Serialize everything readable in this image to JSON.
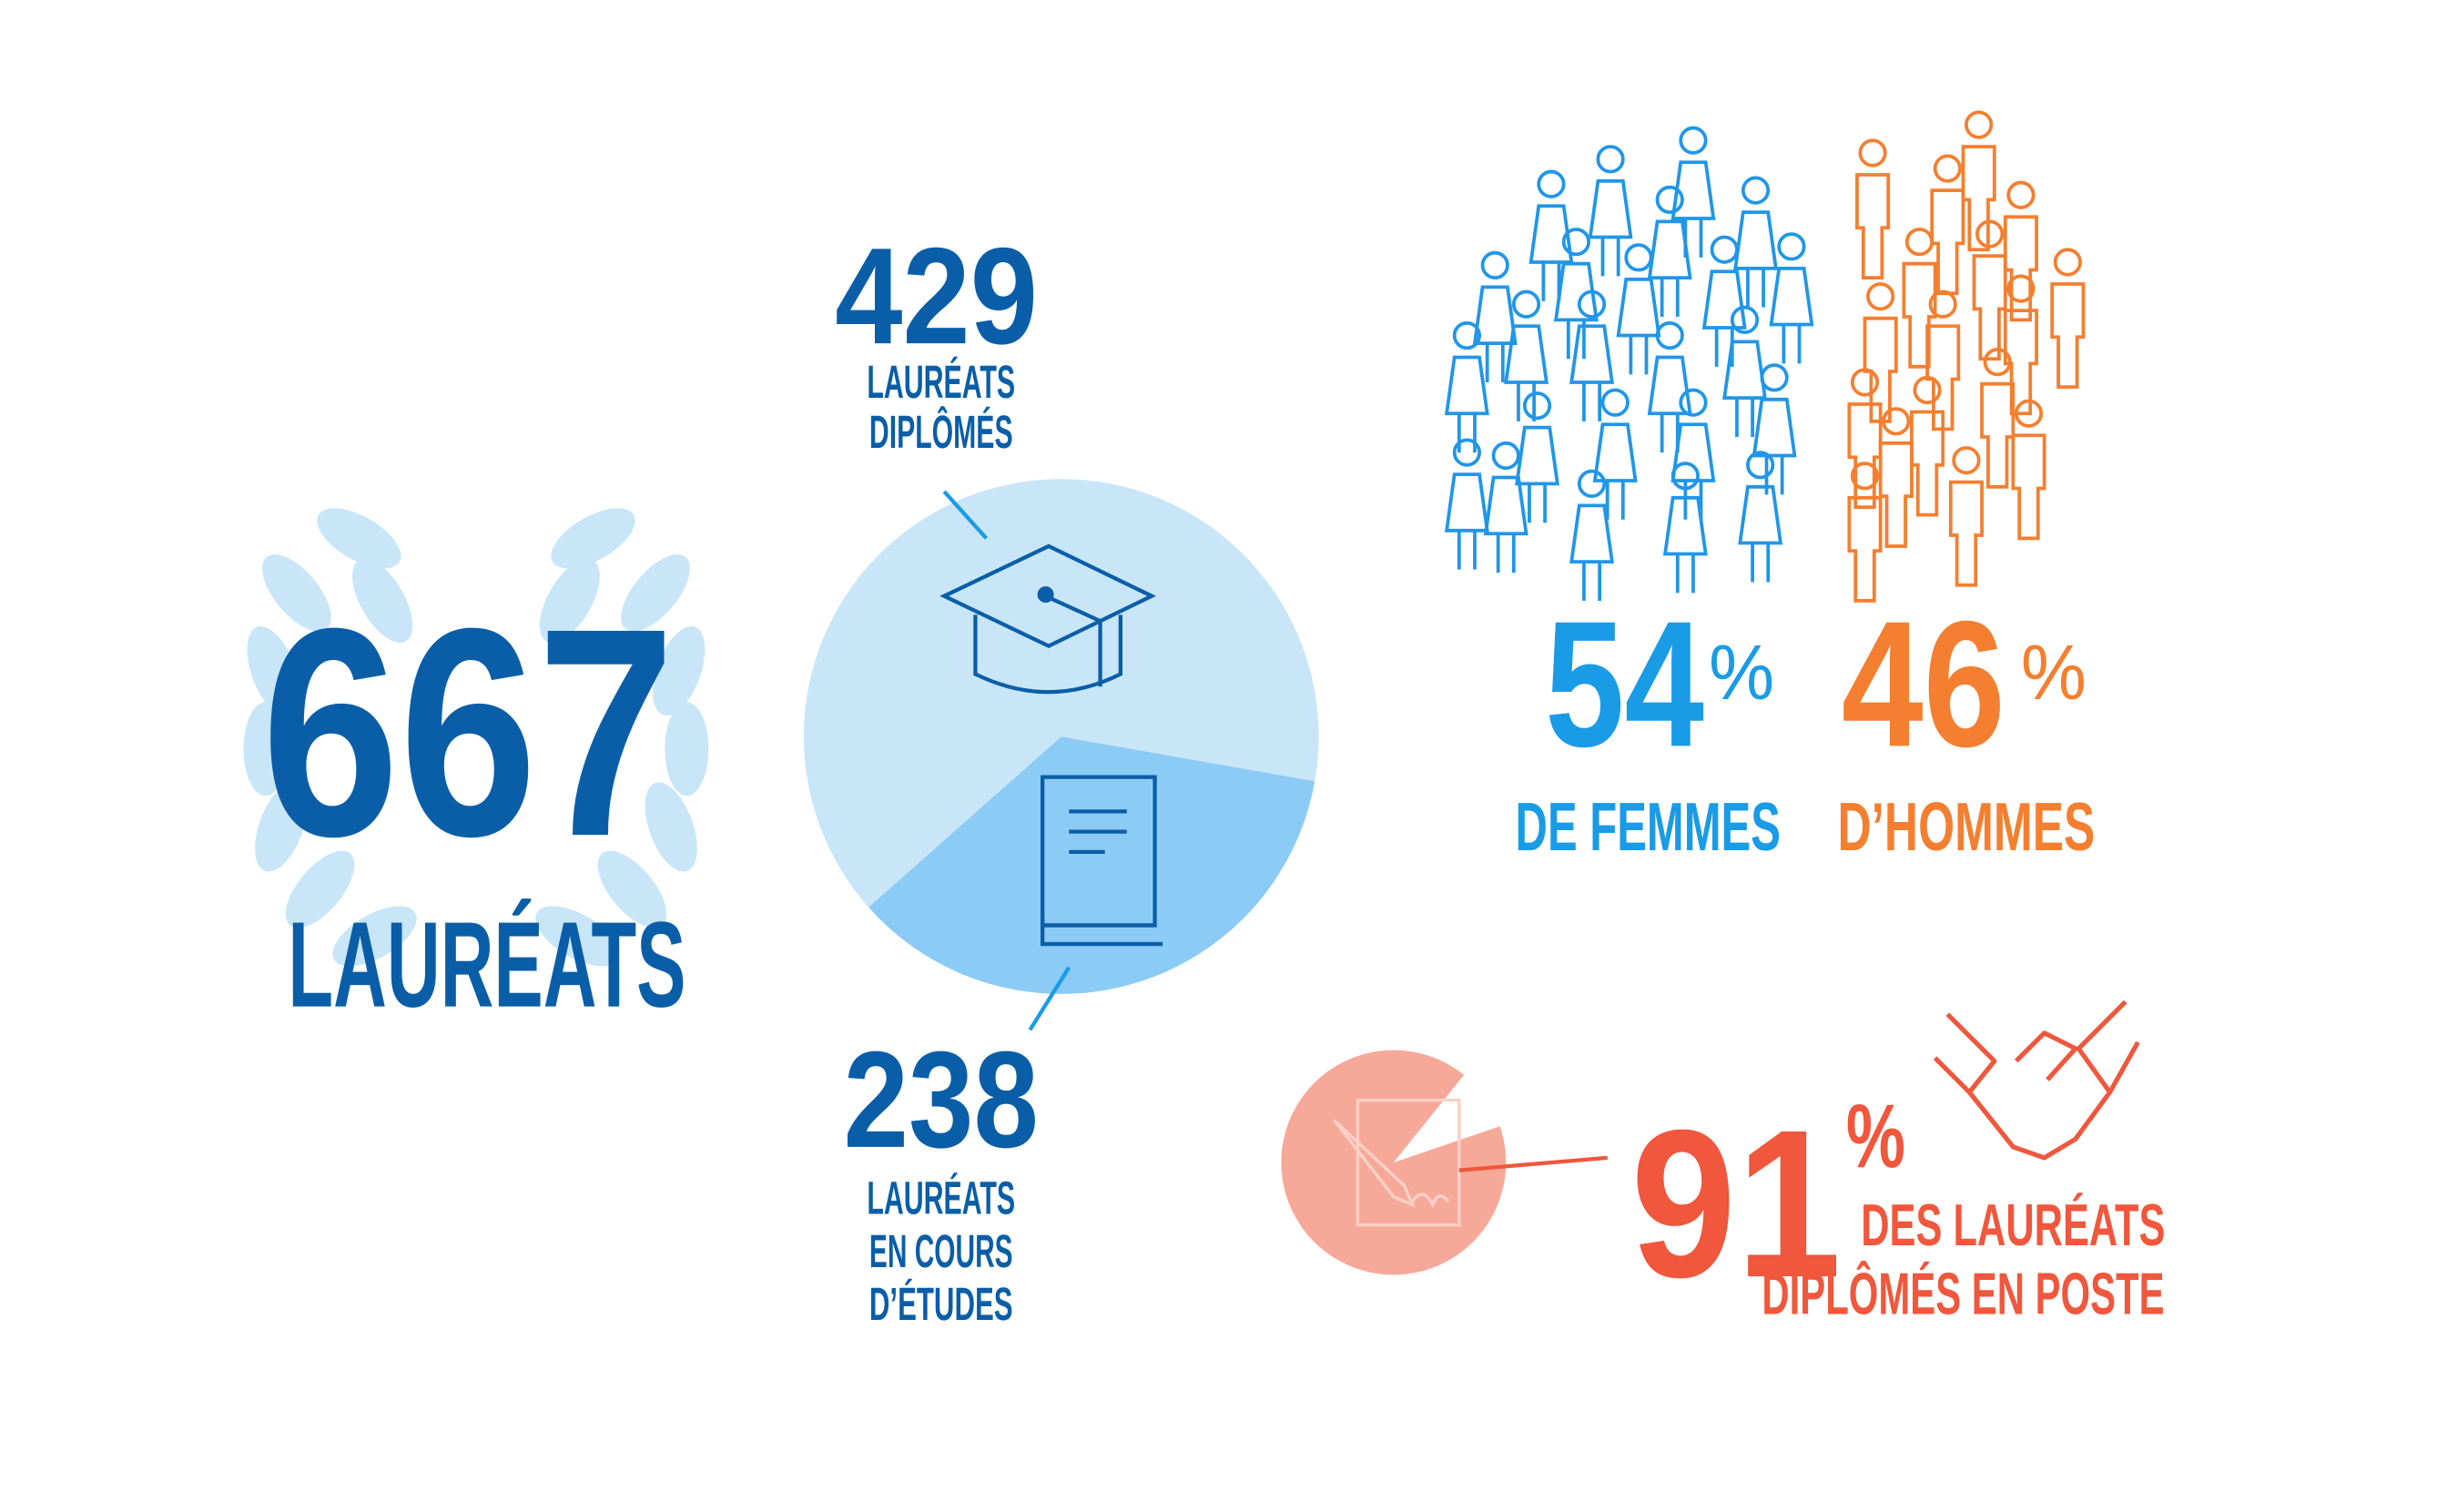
{
  "total": {
    "value": "667",
    "label": "LAURÉATS"
  },
  "graduates": {
    "value": 429,
    "label_lines": [
      "LAURÉATS",
      "DIPLÔMÉS"
    ]
  },
  "students": {
    "value": 238,
    "label_lines": [
      "LAURÉATS",
      "EN COURS",
      "D’ÉTUDES"
    ]
  },
  "women": {
    "value": 54,
    "percent_sign": "%",
    "label": "DE FEMMES"
  },
  "men": {
    "value": 46,
    "percent_sign": "%",
    "label": "D’HOMMES"
  },
  "employed": {
    "value": 91,
    "percent_sign": "%",
    "label_lines": [
      "DES LAURÉATS",
      "DIPLÔMÉS EN POSTE"
    ]
  }
}
